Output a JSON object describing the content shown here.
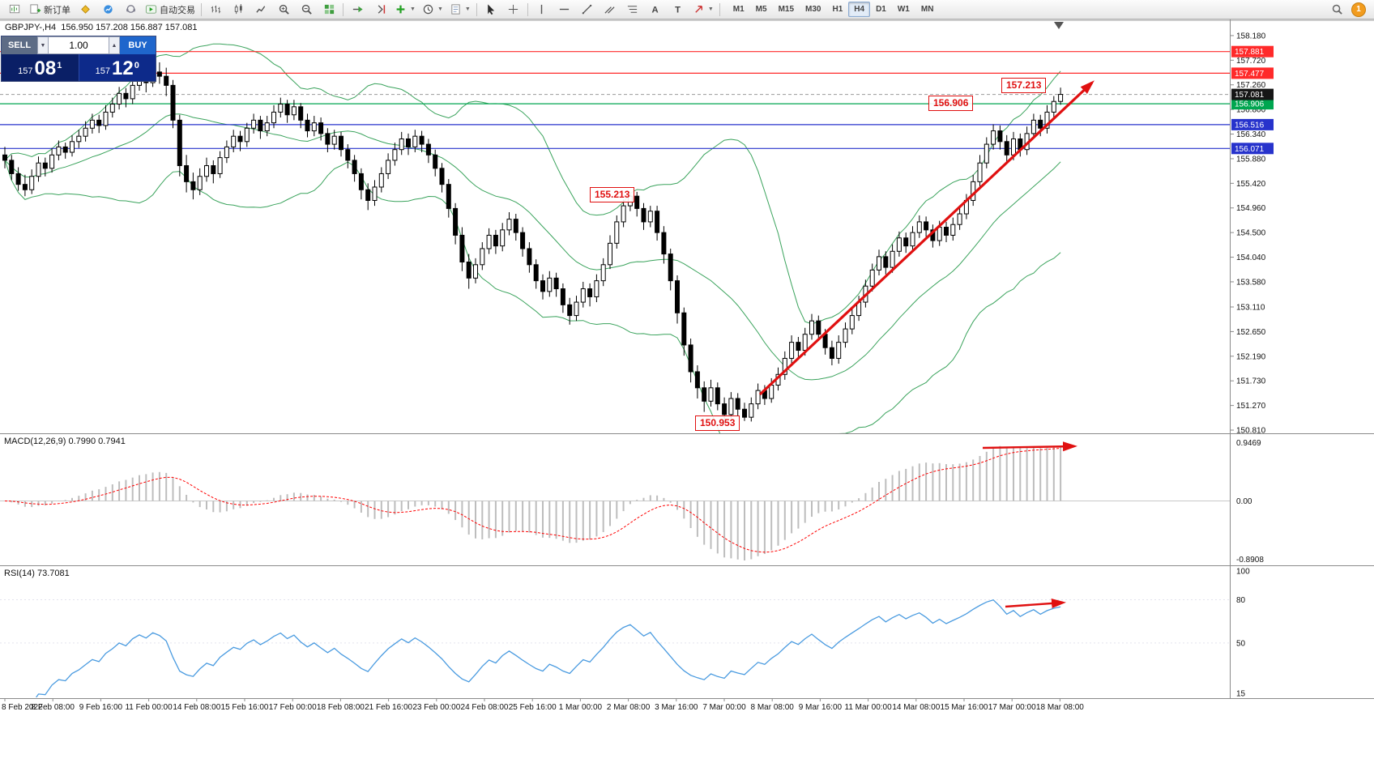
{
  "toolbar": {
    "left_buttons": [
      {
        "name": "new-chart",
        "type": "icon"
      },
      {
        "name": "new-order",
        "label": "新订单",
        "type": "icon-text"
      },
      {
        "name": "market",
        "type": "icon"
      },
      {
        "name": "signals",
        "type": "icon"
      },
      {
        "name": "support",
        "type": "icon"
      },
      {
        "name": "autotrading",
        "label": "自动交易",
        "type": "icon-text"
      },
      {
        "type": "sep"
      },
      {
        "name": "bars-chart",
        "type": "icon"
      },
      {
        "name": "candles-chart",
        "type": "icon"
      },
      {
        "name": "line-chart",
        "type": "icon"
      },
      {
        "name": "zoom-in",
        "type": "icon"
      },
      {
        "name": "zoom-out",
        "type": "icon"
      },
      {
        "name": "tile-windows",
        "type": "icon"
      },
      {
        "type": "sep"
      },
      {
        "name": "auto-scroll",
        "type": "icon"
      },
      {
        "name": "chart-shift",
        "type": "icon"
      },
      {
        "name": "indicators",
        "type": "icon",
        "dropdown": true
      },
      {
        "name": "periods",
        "type": "icon",
        "dropdown": true
      },
      {
        "name": "templates",
        "type": "icon",
        "dropdown": true
      },
      {
        "type": "sep"
      },
      {
        "name": "cursor",
        "type": "icon"
      },
      {
        "name": "crosshair",
        "type": "icon"
      },
      {
        "type": "sep"
      },
      {
        "name": "vertical-line",
        "type": "icon"
      },
      {
        "name": "horizontal-line",
        "type": "icon"
      },
      {
        "name": "trendline",
        "type": "icon"
      },
      {
        "name": "equidistant-channel",
        "type": "icon"
      },
      {
        "name": "fibonacci",
        "type": "icon"
      },
      {
        "name": "text",
        "type": "icon"
      },
      {
        "name": "text-label",
        "type": "icon"
      },
      {
        "name": "arrows",
        "type": "icon",
        "dropdown": true
      },
      {
        "type": "sep"
      }
    ],
    "timeframes": [
      "M1",
      "M5",
      "M15",
      "M30",
      "H1",
      "H4",
      "D1",
      "W1",
      "MN"
    ],
    "active_timeframe": "H4",
    "notification_count": "1"
  },
  "trade_panel": {
    "sell_label": "SELL",
    "buy_label": "BUY",
    "volume": "1.00",
    "sell": {
      "prefix": "157",
      "pips": "08",
      "frac": "1"
    },
    "buy": {
      "prefix": "157",
      "pips": "12",
      "frac": "0"
    }
  },
  "colors": {
    "up_candle": "#ffffff",
    "down_candle": "#000000",
    "candle_stroke": "#000000",
    "bollinger": "#3aa35c",
    "macd_hist": "#bdbdbd",
    "macd_signal": "#ff0000",
    "rsi_line": "#4a9be0",
    "trend_arrow": "#e01010",
    "level_red": "#ff2a2a",
    "level_green": "#00a650",
    "level_blue": "#2733cc",
    "current_tag_bg": "#161616",
    "axis_line": "#8a8a8a"
  },
  "chart_data": {
    "type": "candlestick",
    "symbol": "GBPJPY-",
    "timeframe": "H4",
    "title": "GBPJPY-,H4",
    "ohlc_header": "GBPJPY-,H4  156.950 157.208 156.887 157.081",
    "price_axis_labels": [
      "158.180",
      "157.720",
      "157.260",
      "156.800",
      "156.340",
      "155.880",
      "155.420",
      "154.960",
      "154.500",
      "154.040",
      "153.580",
      "153.110",
      "152.650",
      "152.190",
      "151.730",
      "151.270",
      "150.810"
    ],
    "time_labels": [
      "8 Feb 2022",
      "8 Feb 08:00",
      "9 Feb 16:00",
      "11 Feb 00:00",
      "14 Feb 08:00",
      "15 Feb 16:00",
      "17 Feb 00:00",
      "18 Feb 08:00",
      "21 Feb 16:00",
      "23 Feb 00:00",
      "24 Feb 08:00",
      "25 Feb 16:00",
      "1 Mar 00:00",
      "2 Mar 08:00",
      "3 Mar 16:00",
      "7 Mar 00:00",
      "8 Mar 08:00",
      "9 Mar 16:00",
      "11 Mar 00:00",
      "14 Mar 08:00",
      "15 Mar 16:00",
      "17 Mar 00:00",
      "18 Mar 08:00"
    ],
    "price_levels": [
      {
        "value": 157.881,
        "label": "157.881",
        "color_key": "level_red"
      },
      {
        "value": 157.477,
        "label": "157.477",
        "color_key": "level_red"
      },
      {
        "value": 156.906,
        "label": "156.906",
        "color_key": "level_green"
      },
      {
        "value": 156.516,
        "label": "156.516",
        "color_key": "level_blue"
      },
      {
        "value": 156.071,
        "label": "156.071",
        "color_key": "level_blue"
      }
    ],
    "current_price": {
      "value": 157.081,
      "label": "157.081"
    },
    "annotations": [
      {
        "text": "157.213"
      },
      {
        "text": "156.906"
      },
      {
        "text": "155.213"
      },
      {
        "text": "150.953"
      }
    ],
    "indicators": {
      "bollinger": {
        "period": 20,
        "deviation": 2
      },
      "macd": {
        "label": "MACD(12,26,9) 0.7990 0.7941",
        "fast": 12,
        "slow": 26,
        "signal": 9,
        "axis_max": "0.9469",
        "axis_zero": "0.00",
        "axis_min": "-0.8908"
      },
      "rsi": {
        "label": "RSI(14) 73.7081",
        "period": 14,
        "last_value": "73.7081",
        "axis_labels": [
          "100",
          "80",
          "50",
          "15"
        ]
      }
    },
    "candles": [
      [
        155.95,
        156.1,
        155.7,
        155.85
      ],
      [
        155.85,
        155.95,
        155.48,
        155.6
      ],
      [
        155.6,
        155.72,
        155.28,
        155.4
      ],
      [
        155.4,
        155.58,
        155.18,
        155.3
      ],
      [
        155.3,
        155.68,
        155.22,
        155.55
      ],
      [
        155.55,
        155.92,
        155.45,
        155.8
      ],
      [
        155.8,
        155.9,
        155.55,
        155.7
      ],
      [
        155.7,
        156.08,
        155.62,
        155.95
      ],
      [
        155.95,
        156.22,
        155.85,
        156.1
      ],
      [
        156.1,
        156.18,
        155.88,
        156.0
      ],
      [
        156.0,
        156.32,
        155.92,
        156.2
      ],
      [
        156.2,
        156.42,
        156.08,
        156.3
      ],
      [
        156.3,
        156.58,
        156.2,
        156.45
      ],
      [
        156.45,
        156.72,
        156.35,
        156.6
      ],
      [
        156.6,
        156.7,
        156.36,
        156.5
      ],
      [
        156.5,
        156.88,
        156.42,
        156.75
      ],
      [
        156.75,
        157.02,
        156.65,
        156.9
      ],
      [
        156.9,
        157.22,
        156.8,
        157.1
      ],
      [
        157.1,
        157.2,
        156.84,
        157.0
      ],
      [
        157.0,
        157.38,
        156.9,
        157.25
      ],
      [
        157.25,
        157.55,
        157.15,
        157.4
      ],
      [
        157.4,
        157.52,
        157.12,
        157.3
      ],
      [
        157.3,
        157.76,
        157.22,
        157.5
      ],
      [
        157.5,
        157.68,
        157.28,
        157.42
      ],
      [
        157.42,
        157.58,
        157.05,
        157.25
      ],
      [
        157.25,
        157.35,
        156.45,
        156.6
      ],
      [
        156.6,
        156.7,
        155.55,
        155.75
      ],
      [
        155.75,
        155.95,
        155.25,
        155.45
      ],
      [
        155.45,
        155.62,
        155.12,
        155.3
      ],
      [
        155.3,
        155.7,
        155.2,
        155.55
      ],
      [
        155.55,
        155.9,
        155.45,
        155.75
      ],
      [
        155.75,
        155.85,
        155.42,
        155.6
      ],
      [
        155.6,
        156.02,
        155.52,
        155.9
      ],
      [
        155.9,
        156.22,
        155.8,
        156.1
      ],
      [
        156.1,
        156.42,
        156.0,
        156.3
      ],
      [
        156.3,
        156.4,
        156.02,
        156.2
      ],
      [
        156.2,
        156.55,
        156.1,
        156.45
      ],
      [
        156.45,
        156.72,
        156.35,
        156.6
      ],
      [
        156.6,
        156.68,
        156.25,
        156.4
      ],
      [
        156.4,
        156.68,
        156.3,
        156.55
      ],
      [
        156.55,
        156.88,
        156.45,
        156.75
      ],
      [
        156.75,
        157.02,
        156.65,
        156.9
      ],
      [
        156.9,
        156.98,
        156.55,
        156.7
      ],
      [
        156.7,
        156.98,
        156.6,
        156.85
      ],
      [
        156.85,
        156.92,
        156.45,
        156.6
      ],
      [
        156.6,
        156.72,
        156.28,
        156.4
      ],
      [
        156.4,
        156.68,
        156.3,
        156.55
      ],
      [
        156.55,
        156.65,
        156.22,
        156.35
      ],
      [
        156.35,
        156.45,
        156.0,
        156.15
      ],
      [
        156.15,
        156.42,
        156.05,
        156.3
      ],
      [
        156.3,
        156.38,
        155.92,
        156.05
      ],
      [
        156.05,
        156.15,
        155.7,
        155.85
      ],
      [
        155.85,
        155.95,
        155.45,
        155.6
      ],
      [
        155.6,
        155.7,
        155.12,
        155.3
      ],
      [
        155.3,
        155.42,
        154.92,
        155.1
      ],
      [
        155.1,
        155.48,
        155.0,
        155.35
      ],
      [
        155.35,
        155.72,
        155.25,
        155.6
      ],
      [
        155.6,
        155.98,
        155.5,
        155.85
      ],
      [
        155.85,
        156.18,
        155.75,
        156.05
      ],
      [
        156.05,
        156.38,
        155.95,
        156.25
      ],
      [
        156.25,
        156.35,
        155.95,
        156.1
      ],
      [
        156.1,
        156.42,
        156.0,
        156.3
      ],
      [
        156.3,
        156.4,
        156.0,
        156.15
      ],
      [
        156.15,
        156.25,
        155.8,
        155.95
      ],
      [
        155.95,
        156.05,
        155.55,
        155.7
      ],
      [
        155.7,
        155.8,
        155.25,
        155.4
      ],
      [
        155.4,
        155.5,
        154.78,
        154.95
      ],
      [
        154.95,
        155.05,
        154.28,
        154.45
      ],
      [
        154.45,
        154.6,
        153.78,
        153.95
      ],
      [
        153.95,
        154.1,
        153.45,
        153.65
      ],
      [
        153.65,
        154.02,
        153.55,
        153.9
      ],
      [
        153.9,
        154.32,
        153.8,
        154.2
      ],
      [
        154.2,
        154.58,
        154.1,
        154.45
      ],
      [
        154.45,
        154.55,
        154.1,
        154.25
      ],
      [
        154.25,
        154.68,
        154.15,
        154.55
      ],
      [
        154.55,
        154.88,
        154.45,
        154.75
      ],
      [
        154.75,
        154.85,
        154.35,
        154.5
      ],
      [
        154.5,
        154.6,
        154.05,
        154.2
      ],
      [
        154.2,
        154.32,
        153.75,
        153.9
      ],
      [
        153.9,
        154.0,
        153.45,
        153.6
      ],
      [
        153.6,
        153.72,
        153.25,
        153.4
      ],
      [
        153.4,
        153.78,
        153.3,
        153.65
      ],
      [
        153.65,
        153.75,
        153.3,
        153.45
      ],
      [
        153.45,
        153.55,
        153.0,
        153.15
      ],
      [
        153.15,
        153.28,
        152.78,
        152.95
      ],
      [
        152.95,
        153.32,
        152.85,
        153.2
      ],
      [
        153.2,
        153.58,
        153.1,
        153.45
      ],
      [
        153.45,
        153.55,
        153.12,
        153.3
      ],
      [
        153.3,
        153.72,
        153.2,
        153.6
      ],
      [
        153.6,
        154.02,
        153.5,
        153.9
      ],
      [
        153.9,
        154.45,
        153.82,
        154.3
      ],
      [
        154.3,
        154.82,
        154.2,
        154.7
      ],
      [
        154.7,
        155.12,
        154.6,
        155.0
      ],
      [
        155.0,
        155.21,
        154.9,
        155.18
      ],
      [
        155.18,
        155.26,
        154.8,
        154.95
      ],
      [
        154.95,
        155.05,
        154.55,
        154.7
      ],
      [
        154.7,
        155.0,
        154.6,
        154.9
      ],
      [
        154.9,
        155.0,
        154.35,
        154.5
      ],
      [
        154.5,
        154.62,
        153.92,
        154.1
      ],
      [
        154.1,
        154.2,
        153.42,
        153.6
      ],
      [
        153.6,
        153.7,
        152.8,
        153.0
      ],
      [
        153.0,
        153.1,
        152.2,
        152.4
      ],
      [
        152.4,
        152.52,
        151.7,
        151.9
      ],
      [
        151.9,
        152.02,
        151.4,
        151.6
      ],
      [
        151.6,
        151.72,
        151.15,
        151.35
      ],
      [
        151.35,
        151.75,
        151.25,
        151.6
      ],
      [
        151.6,
        151.7,
        151.18,
        151.3
      ],
      [
        151.3,
        151.42,
        150.953,
        151.1
      ],
      [
        151.1,
        151.52,
        151.02,
        151.4
      ],
      [
        151.4,
        151.5,
        151.08,
        151.2
      ],
      [
        151.2,
        151.32,
        150.98,
        151.05
      ],
      [
        151.05,
        151.42,
        150.97,
        151.3
      ],
      [
        151.3,
        151.68,
        151.2,
        151.55
      ],
      [
        151.55,
        151.65,
        151.28,
        151.4
      ],
      [
        151.4,
        151.78,
        151.32,
        151.65
      ],
      [
        151.65,
        151.98,
        151.55,
        151.85
      ],
      [
        151.85,
        152.28,
        151.75,
        152.15
      ],
      [
        152.15,
        152.58,
        152.05,
        152.45
      ],
      [
        152.45,
        152.55,
        152.18,
        152.3
      ],
      [
        152.3,
        152.72,
        152.2,
        152.6
      ],
      [
        152.6,
        152.98,
        152.5,
        152.85
      ],
      [
        152.85,
        152.95,
        152.48,
        152.6
      ],
      [
        152.6,
        152.7,
        152.22,
        152.35
      ],
      [
        152.35,
        152.48,
        152.02,
        152.15
      ],
      [
        152.15,
        152.58,
        152.05,
        152.45
      ],
      [
        152.45,
        152.82,
        152.35,
        152.7
      ],
      [
        152.7,
        153.08,
        152.6,
        152.95
      ],
      [
        152.95,
        153.32,
        152.85,
        153.2
      ],
      [
        153.2,
        153.62,
        153.1,
        153.5
      ],
      [
        153.5,
        153.92,
        153.4,
        153.8
      ],
      [
        153.8,
        154.18,
        153.7,
        154.05
      ],
      [
        154.05,
        154.15,
        153.72,
        153.85
      ],
      [
        153.85,
        154.28,
        153.75,
        154.15
      ],
      [
        154.15,
        154.52,
        154.05,
        154.4
      ],
      [
        154.4,
        154.5,
        154.12,
        154.25
      ],
      [
        154.25,
        154.62,
        154.15,
        154.5
      ],
      [
        154.5,
        154.82,
        154.4,
        154.7
      ],
      [
        154.7,
        154.8,
        154.42,
        154.55
      ],
      [
        154.55,
        154.65,
        154.22,
        154.35
      ],
      [
        154.35,
        154.72,
        154.25,
        154.6
      ],
      [
        154.6,
        154.7,
        154.32,
        154.45
      ],
      [
        154.45,
        154.78,
        154.35,
        154.65
      ],
      [
        154.65,
        154.98,
        154.55,
        154.85
      ],
      [
        154.85,
        155.22,
        154.75,
        155.1
      ],
      [
        155.1,
        155.58,
        155.0,
        155.45
      ],
      [
        155.45,
        155.95,
        155.35,
        155.8
      ],
      [
        155.8,
        156.28,
        155.7,
        156.15
      ],
      [
        156.15,
        156.52,
        156.05,
        156.4
      ],
      [
        156.4,
        156.5,
        156.05,
        156.2
      ],
      [
        156.2,
        156.32,
        155.82,
        155.95
      ],
      [
        155.95,
        156.38,
        155.85,
        156.25
      ],
      [
        156.25,
        156.35,
        155.92,
        156.05
      ],
      [
        156.05,
        156.48,
        155.95,
        156.35
      ],
      [
        156.35,
        156.72,
        156.25,
        156.6
      ],
      [
        156.6,
        156.7,
        156.3,
        156.45
      ],
      [
        156.45,
        156.88,
        156.35,
        156.75
      ],
      [
        156.75,
        157.05,
        156.65,
        156.95
      ],
      [
        156.95,
        157.208,
        156.887,
        157.081
      ]
    ]
  }
}
